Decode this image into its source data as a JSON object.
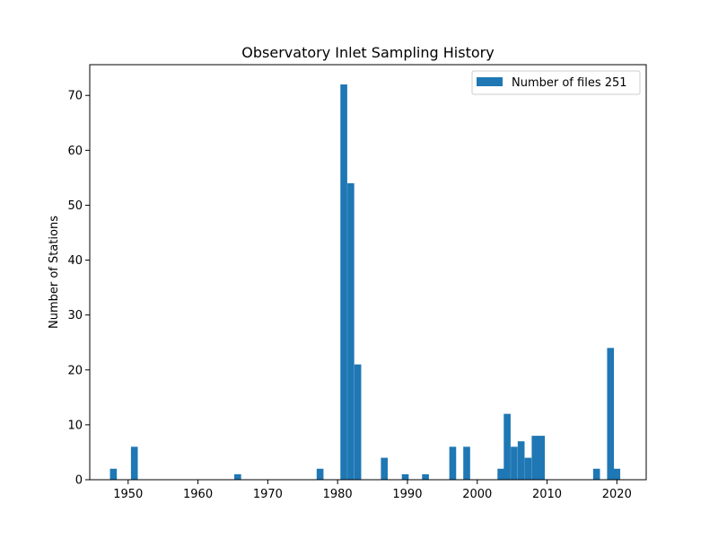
{
  "chart_data": {
    "type": "bar",
    "title": "Observatory Inlet Sampling History",
    "xlabel": "",
    "ylabel": "Number of Stations",
    "xlim": [
      1944.5,
      2024.2
    ],
    "ylim": [
      0,
      75.6
    ],
    "bin_width": 0.98,
    "xticks": [
      1950,
      1960,
      1970,
      1980,
      1990,
      2000,
      2010,
      2020
    ],
    "yticks": [
      0,
      10,
      20,
      30,
      40,
      50,
      60,
      70
    ],
    "grid": false,
    "legend": {
      "position": "top-right",
      "label": "Number of files 251"
    },
    "color": "#1f77b4",
    "series": [
      {
        "bins": [
          {
            "x": 1947.4,
            "value": 2
          },
          {
            "x": 1950.4,
            "value": 6
          },
          {
            "x": 1965.2,
            "value": 1
          },
          {
            "x": 1977.0,
            "value": 2
          },
          {
            "x": 1980.4,
            "value": 72
          },
          {
            "x": 1981.4,
            "value": 54
          },
          {
            "x": 1982.4,
            "value": 21
          },
          {
            "x": 1986.2,
            "value": 4
          },
          {
            "x": 1989.2,
            "value": 1
          },
          {
            "x": 1992.1,
            "value": 1
          },
          {
            "x": 1996.0,
            "value": 6
          },
          {
            "x": 1998.0,
            "value": 6
          },
          {
            "x": 2002.9,
            "value": 2
          },
          {
            "x": 2003.8,
            "value": 12
          },
          {
            "x": 2004.8,
            "value": 6
          },
          {
            "x": 2005.8,
            "value": 7
          },
          {
            "x": 2006.8,
            "value": 4
          },
          {
            "x": 2007.8,
            "value": 8
          },
          {
            "x": 2008.7,
            "value": 8
          },
          {
            "x": 2016.6,
            "value": 2
          },
          {
            "x": 2018.6,
            "value": 24
          },
          {
            "x": 2019.5,
            "value": 2
          }
        ]
      }
    ]
  }
}
